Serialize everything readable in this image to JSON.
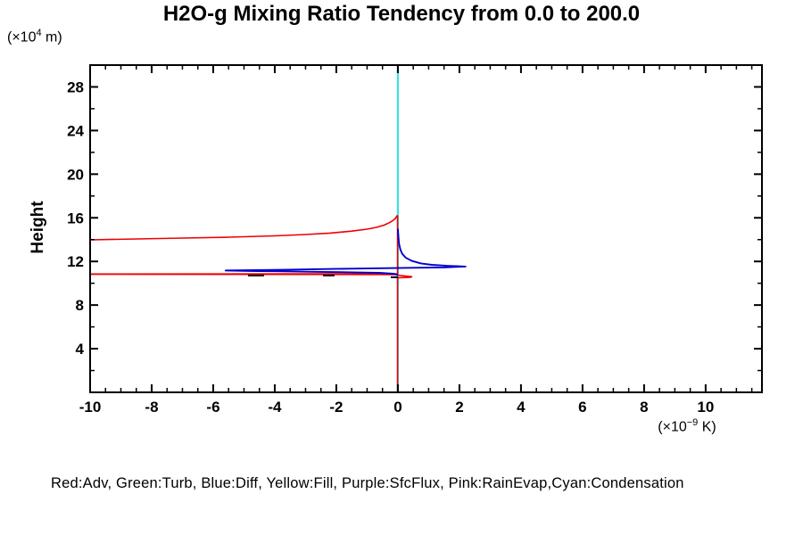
{
  "title": "H2O-g Mixing Ratio Tendency from 0.0 to 200.0",
  "y_unit": {
    "open": "(×10",
    "sup": "4",
    "close": " m)"
  },
  "x_unit": {
    "open": "(×10",
    "sup": "−9",
    "close": " K)"
  },
  "y_axis_label": "Height",
  "legend_text": "Red:Adv, Green:Turb, Blue:Diff, Yellow:Fill, Purple:SfcFlux, Pink:RainEvap,Cyan:Condensation",
  "chart_data": {
    "type": "line",
    "title": "H2O-g Mixing Ratio Tendency from 0.0 to 200.0",
    "xlabel": "(×10⁻⁹ K)",
    "ylabel": "Height (×10⁴ m)",
    "x_range": [
      -10,
      11.83
    ],
    "y_range": [
      0,
      30
    ],
    "x_major_ticks": [
      -10,
      -8,
      -6,
      -4,
      -2,
      0,
      2,
      4,
      6,
      8,
      10
    ],
    "x_minor_step": 0.5,
    "y_major_ticks": [
      4,
      8,
      12,
      16,
      20,
      24,
      28
    ],
    "y_minor_step": 2,
    "grid": false,
    "legend_position": "bottom-caption",
    "colors": {
      "red": "#ee0000",
      "blue": "#0000d0",
      "cyan": "#3fdfe2",
      "black": "#000000"
    },
    "series": [
      {
        "name": "Condensation",
        "color_key": "cyan",
        "width": 2.2,
        "points": [
          [
            0,
            0
          ],
          [
            0,
            30
          ]
        ]
      },
      {
        "name": "Adv",
        "color_key": "red",
        "width": 1.6,
        "points": [
          [
            -10,
            13.98
          ],
          [
            -8.5,
            14.06
          ],
          [
            -7,
            14.14
          ],
          [
            -5.5,
            14.22
          ],
          [
            -4,
            14.35
          ],
          [
            -3,
            14.47
          ],
          [
            -2.2,
            14.6
          ],
          [
            -1.5,
            14.78
          ],
          [
            -1.0,
            14.96
          ],
          [
            -0.7,
            15.12
          ],
          [
            -0.45,
            15.33
          ],
          [
            -0.28,
            15.55
          ],
          [
            -0.16,
            15.75
          ],
          [
            -0.08,
            15.95
          ],
          [
            -0.03,
            16.18
          ],
          [
            -0.01,
            16.18
          ],
          [
            -0.01,
            10.87
          ],
          [
            -10,
            10.85
          ],
          [
            -10,
            10.82
          ],
          [
            -0.05,
            10.8
          ],
          [
            0.05,
            10.72
          ],
          [
            0.45,
            10.6
          ],
          [
            0.42,
            10.55
          ],
          [
            -0.01,
            10.5
          ],
          [
            -0.01,
            0.1
          ]
        ]
      },
      {
        "name": "Diff",
        "color_key": "blue",
        "width": 1.9,
        "points": [
          [
            0.0,
            15.0
          ],
          [
            0.02,
            14.2
          ],
          [
            0.04,
            13.6
          ],
          [
            0.08,
            13.1
          ],
          [
            0.14,
            12.7
          ],
          [
            0.25,
            12.35
          ],
          [
            0.45,
            12.05
          ],
          [
            0.75,
            11.82
          ],
          [
            1.1,
            11.69
          ],
          [
            1.6,
            11.6
          ],
          [
            2.2,
            11.53
          ],
          [
            1.5,
            11.45
          ],
          [
            0.5,
            11.42
          ],
          [
            -0.5,
            11.38
          ],
          [
            -1.5,
            11.34
          ],
          [
            -2.5,
            11.3
          ],
          [
            -3.5,
            11.25
          ],
          [
            -4.6,
            11.21
          ],
          [
            -5.6,
            11.17
          ],
          [
            -4.6,
            11.12
          ],
          [
            -4.0,
            11.1
          ],
          [
            -3.0,
            11.06
          ],
          [
            -2.5,
            11.04
          ],
          [
            -1.5,
            11.0
          ],
          [
            -0.6,
            10.96
          ],
          [
            -0.15,
            10.87
          ],
          [
            -0.03,
            10.78
          ],
          [
            0,
            10.7
          ]
        ]
      },
      {
        "name": "overlap-marks",
        "color_key": "black",
        "width": 2,
        "segments": [
          {
            "h": 10.71,
            "v1": -4.87,
            "v2": -4.35
          },
          {
            "h": 10.71,
            "v1": -2.43,
            "v2": -2.06
          },
          {
            "h": 10.55,
            "v1": -0.23,
            "v2": 0.0
          }
        ]
      }
    ]
  }
}
